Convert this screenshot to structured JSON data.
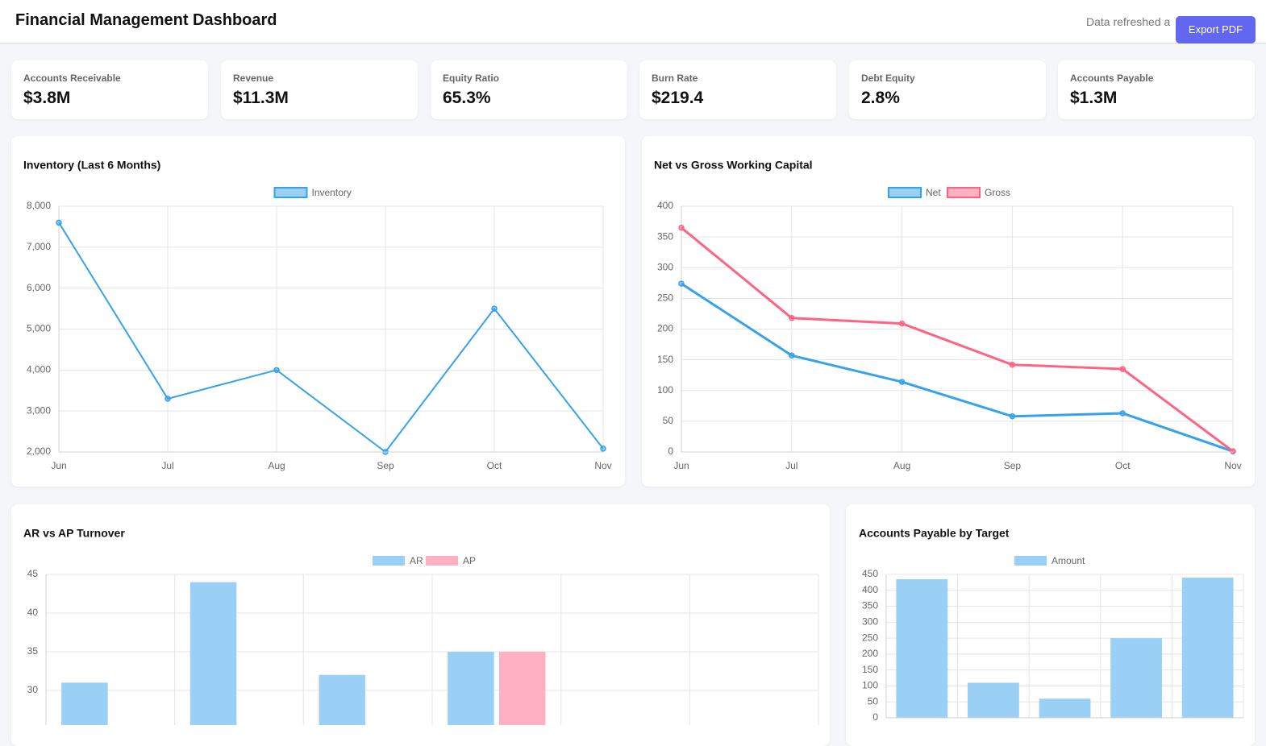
{
  "header": {
    "title": "Financial Management Dashboard",
    "refreshed": "Data refreshed a",
    "button": "Export PDF"
  },
  "kpis": [
    {
      "label": "Accounts Receivable",
      "value": "$3.8M"
    },
    {
      "label": "Revenue",
      "value": "$11.3M"
    },
    {
      "label": "Equity Ratio",
      "value": "65.3%"
    },
    {
      "label": "Burn Rate",
      "value": "$219.4"
    },
    {
      "label": "Debt Equity",
      "value": "2.8%"
    },
    {
      "label": "Accounts Payable",
      "value": "$1.3M"
    }
  ],
  "chart_data": [
    {
      "type": "line",
      "title": "Inventory (Last 6 Months)",
      "categories": [
        "Jun",
        "Jul",
        "Aug",
        "Sep",
        "Oct",
        "Nov"
      ],
      "series": [
        {
          "name": "Inventory",
          "color": "#36a2eb",
          "values": [
            7600,
            3300,
            4000,
            2000,
            5500,
            2080
          ]
        }
      ],
      "ylim": [
        2000,
        8000
      ],
      "yticks": [
        {
          "value": 2000,
          "label": "2,000"
        },
        {
          "value": 3000,
          "label": "3,000"
        },
        {
          "value": 4000,
          "label": "4,000"
        },
        {
          "value": 5000,
          "label": "5,000"
        },
        {
          "value": 6000,
          "label": "6,000"
        },
        {
          "value": 7000,
          "label": "7,000"
        },
        {
          "value": 8000,
          "label": "8,000"
        }
      ],
      "grid": true
    },
    {
      "type": "line",
      "title": "Net vs Gross Working Capital",
      "categories": [
        "Jun",
        "Jul",
        "Aug",
        "Sep",
        "Oct",
        "Nov"
      ],
      "series": [
        {
          "name": "Net",
          "color": "#36a2eb",
          "values": [
            274,
            157,
            114,
            58,
            63,
            1
          ]
        },
        {
          "name": "Gross",
          "color": "#ff6384",
          "values": [
            365,
            218,
            209,
            142,
            135,
            1
          ]
        }
      ],
      "ylim": [
        0,
        400
      ],
      "yticks": [
        0,
        50,
        100,
        150,
        200,
        250,
        300,
        350,
        400
      ],
      "grid": true
    },
    {
      "type": "bar",
      "title": "AR vs AP Turnover",
      "categories": [
        null,
        null,
        null,
        null,
        null,
        null
      ],
      "series": [
        {
          "name": "AR",
          "color": "#9ad0f5",
          "values": [
            31,
            44,
            32,
            35,
            null,
            null
          ]
        },
        {
          "name": "AP",
          "color": "#ffb1c1",
          "values": [
            null,
            null,
            null,
            35,
            null,
            null
          ]
        }
      ],
      "ylim": [
        25,
        45
      ],
      "yticks": [
        30,
        35,
        40,
        45
      ],
      "grid": true
    },
    {
      "type": "bar",
      "title": "Accounts Payable by Target",
      "categories": [
        null,
        null,
        null,
        null,
        null
      ],
      "series": [
        {
          "name": "Amount",
          "color": "#9ad0f5",
          "values": [
            435,
            110,
            60,
            250,
            440
          ]
        }
      ],
      "ylim": [
        0,
        450
      ],
      "yticks": [
        0,
        50,
        100,
        150,
        200,
        250,
        300,
        350,
        400,
        450
      ],
      "grid": true
    }
  ]
}
